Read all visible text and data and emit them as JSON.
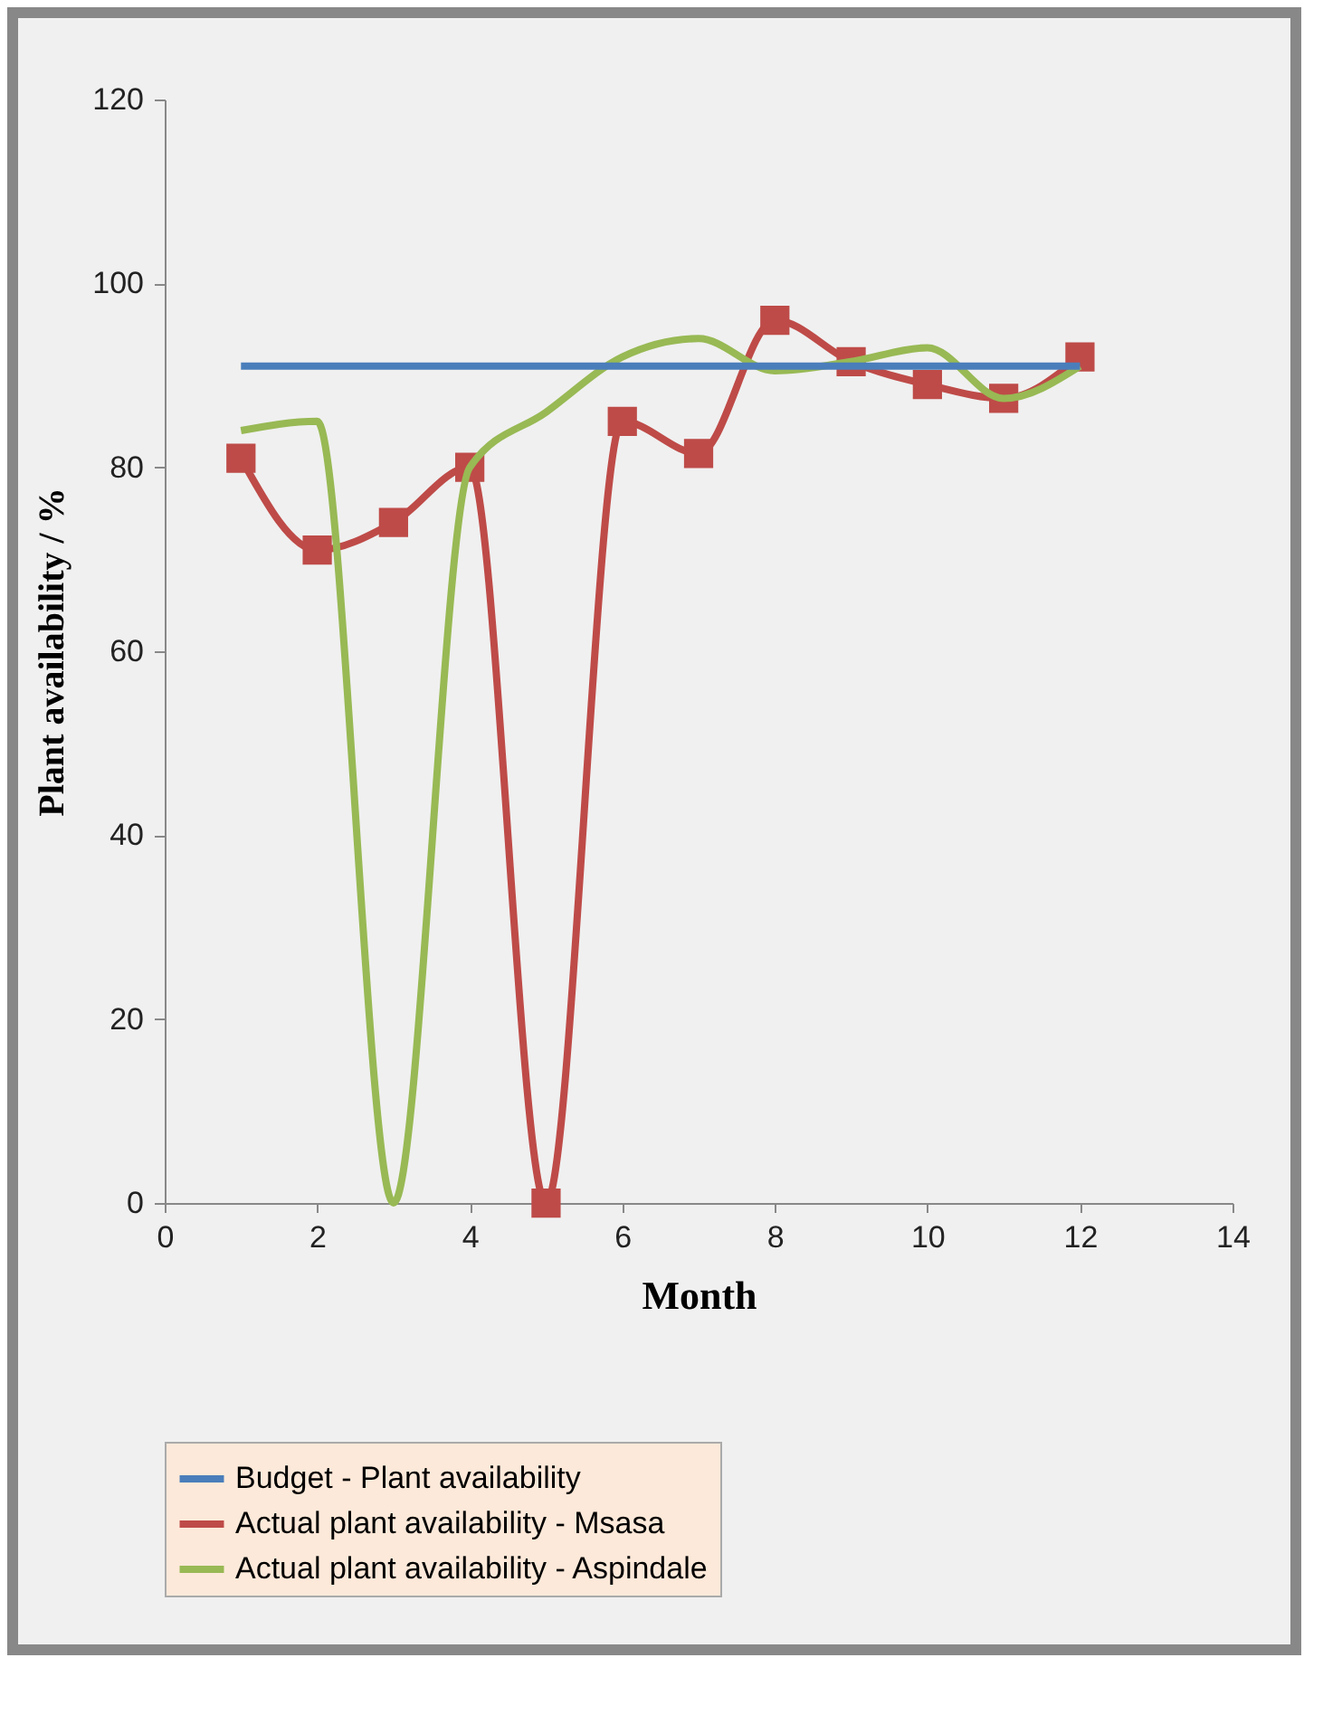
{
  "chart_data": {
    "type": "line",
    "xlabel": "Month",
    "ylabel": "Plant availability / %",
    "x": [
      1,
      2,
      3,
      4,
      5,
      6,
      7,
      8,
      9,
      10,
      11,
      12
    ],
    "series": [
      {
        "name": "Budget - Plant availability",
        "color": "#4a7ebb",
        "marker": "none",
        "values": [
          91,
          91,
          91,
          91,
          91,
          91,
          91,
          91,
          91,
          91,
          91,
          91
        ]
      },
      {
        "name": "Actual plant availability - Msasa",
        "color": "#be4b48",
        "marker": "square",
        "values": [
          81,
          71,
          74,
          80,
          0,
          85,
          81.5,
          96,
          91.5,
          89,
          87.5,
          92
        ]
      },
      {
        "name": "Actual plant availability - Aspindale",
        "color": "#98b954",
        "marker": "none",
        "values": [
          84,
          85,
          0,
          80,
          86,
          92,
          94,
          90.5,
          91.5,
          93,
          87.5,
          91
        ]
      }
    ],
    "xlim": [
      0,
      14
    ],
    "xticks": [
      0,
      2,
      4,
      6,
      8,
      10,
      12,
      14
    ],
    "ylim": [
      0,
      120
    ],
    "yticks": [
      0,
      20,
      40,
      60,
      80,
      100,
      120
    ],
    "grid": false,
    "legend": "bottom",
    "line_style": "solid"
  }
}
